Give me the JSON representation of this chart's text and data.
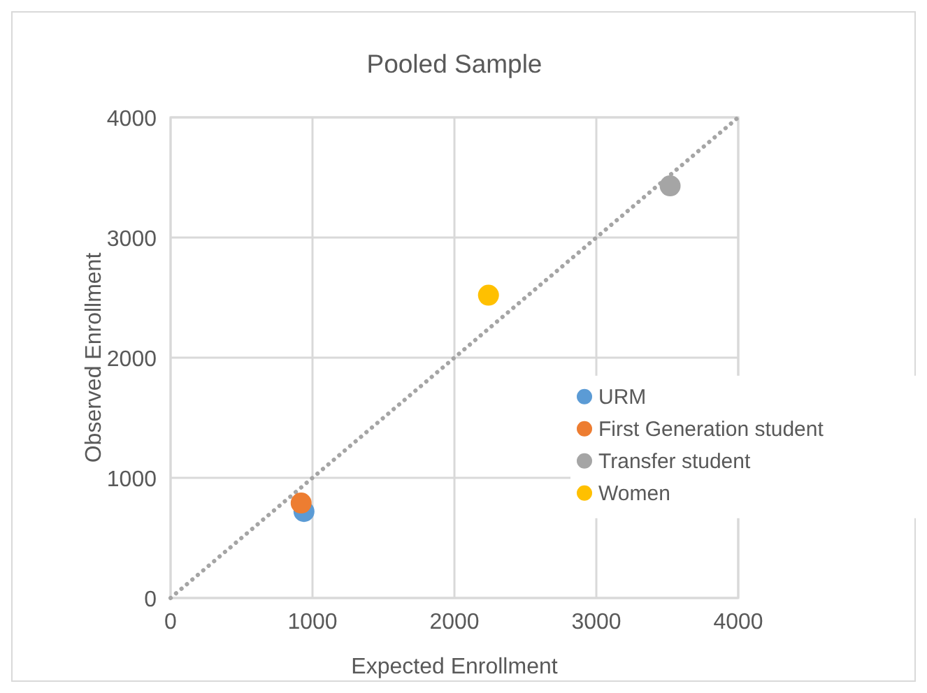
{
  "chart_data": {
    "type": "scatter",
    "title": "Pooled Sample",
    "xlabel": "Expected Enrollment",
    "ylabel": "Observed Enrollment",
    "xlim": [
      0,
      4000
    ],
    "xticks": [
      0,
      1000,
      2000,
      3000,
      4000
    ],
    "ylim": [
      0,
      4000
    ],
    "yticks": [
      0,
      1000,
      2000,
      3000,
      4000
    ],
    "grid": true,
    "legend": "right",
    "marker": "circle",
    "series": [
      {
        "type": "line",
        "color": "#a5a5a5",
        "x": [
          0,
          4000
        ],
        "values": [
          0,
          4000
        ],
        "line_style": "dotted",
        "marker": "none"
      },
      {
        "name": "URM",
        "color": "#5b9bd5",
        "x": [
          940
        ],
        "values": [
          720
        ]
      },
      {
        "name": "First Generation student",
        "color": "#ed7d31",
        "x": [
          920
        ],
        "values": [
          790
        ]
      },
      {
        "name": "Transfer student",
        "color": "#a5a5a5",
        "x": [
          3520
        ],
        "values": [
          3430
        ]
      },
      {
        "name": "Women",
        "color": "#ffc000",
        "x": [
          2240
        ],
        "values": [
          2520
        ]
      }
    ]
  }
}
